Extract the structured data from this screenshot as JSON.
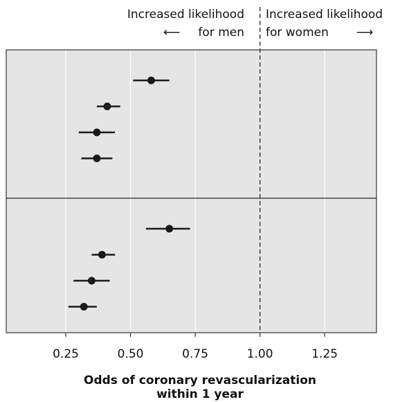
{
  "chart_data": {
    "type": "scatter",
    "subtype": "forest-plot",
    "xlabel": "Odds of coronary revascularization within 1 year",
    "xlabel_lines": [
      "Odds of coronary revascularization",
      "within 1 year"
    ],
    "xlim": [
      0.02,
      1.45
    ],
    "xticks": [
      0.25,
      0.5,
      0.75,
      1.0,
      1.25
    ],
    "xtick_labels": [
      "0.25",
      "0.50",
      "0.75",
      "1.00",
      "1.25"
    ],
    "reference_line": 1.0,
    "grid": true,
    "panels": [
      {
        "points": [
          {
            "estimate": 0.58,
            "lower": 0.51,
            "upper": 0.65
          },
          {
            "estimate": 0.41,
            "lower": 0.37,
            "upper": 0.46
          },
          {
            "estimate": 0.37,
            "lower": 0.3,
            "upper": 0.44
          },
          {
            "estimate": 0.37,
            "lower": 0.31,
            "upper": 0.43
          }
        ]
      },
      {
        "points": [
          {
            "estimate": 0.65,
            "lower": 0.56,
            "upper": 0.73
          },
          {
            "estimate": 0.39,
            "lower": 0.35,
            "upper": 0.44
          },
          {
            "estimate": 0.35,
            "lower": 0.28,
            "upper": 0.42
          },
          {
            "estimate": 0.32,
            "lower": 0.26,
            "upper": 0.37
          }
        ]
      }
    ],
    "annotations": {
      "left": {
        "line1": "Increased likelihood",
        "line2": "for men",
        "arrow": "⟵"
      },
      "right": {
        "line1": "Increased likelihood",
        "line2": "for women",
        "arrow": "⟶"
      }
    },
    "colors": {
      "panel_bg": "#e5e5e5",
      "grid": "#ffffff",
      "marks": "#1a1a1a",
      "border": "#333333"
    }
  }
}
